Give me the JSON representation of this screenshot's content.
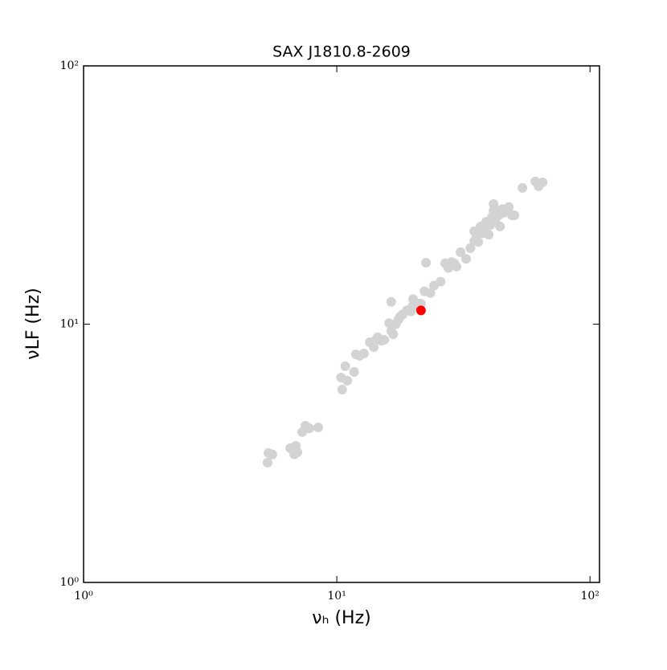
{
  "chart_data": {
    "type": "scatter",
    "title": "SAX J1810.8-2609",
    "xlabel": "νₕ (Hz)",
    "ylabel": "νLF (Hz)",
    "xscale": "log",
    "yscale": "log",
    "xlim": [
      1,
      109
    ],
    "ylim": [
      1,
      100
    ],
    "xticks": [
      {
        "value": 1,
        "label": "10⁰"
      },
      {
        "value": 10,
        "label": "10¹"
      },
      {
        "value": 100,
        "label": "10²"
      }
    ],
    "yticks": [
      {
        "value": 1,
        "label": "10⁰"
      },
      {
        "value": 10,
        "label": "10¹"
      },
      {
        "value": 100,
        "label": "10²"
      }
    ],
    "series": [
      {
        "color": "#d3d3d3",
        "x": [
          5.33,
          5.37,
          5.57,
          6.55,
          6.79,
          6.89,
          6.99,
          7.3,
          7.52,
          7.8,
          8.45,
          10.4,
          10.5,
          10.8,
          11.0,
          11.7,
          11.9,
          12.3,
          12.8,
          13.5,
          14.0,
          14.3,
          14.5,
          15.0,
          15.4,
          16.1,
          16.4,
          16.7,
          17.1,
          17.5,
          17.8,
          18.2,
          18.9,
          19.6,
          19.9,
          20.0,
          20.9,
          21.5,
          22.2,
          22.5,
          23.4,
          24.2,
          25.7,
          26.8,
          27.6,
          28.4,
          29.1,
          29.7,
          30.8,
          32.4,
          33.7,
          34.9,
          35.7,
          34.9,
          36.2,
          37.6,
          38.4,
          38.9,
          37.0,
          39.8,
          40.4,
          41.0,
          41.6,
          42.2,
          42.8,
          43.5,
          44.1,
          45.1,
          41.6,
          45.7,
          47.5,
          49.2,
          50.3,
          47.8,
          54.1,
          60.8,
          62.7,
          65.0,
          16.4,
          20.3
        ],
        "values": [
          2.91,
          3.17,
          3.13,
          3.31,
          3.13,
          3.38,
          3.19,
          3.82,
          4.04,
          3.95,
          3.98,
          6.21,
          5.58,
          6.87,
          6.04,
          6.53,
          7.64,
          7.54,
          7.7,
          8.51,
          8.15,
          8.7,
          8.89,
          8.63,
          8.7,
          10.1,
          9.41,
          9.14,
          10.0,
          10.4,
          10.7,
          10.9,
          11.3,
          11.2,
          11.7,
          12.5,
          12.0,
          12.0,
          13.4,
          17.3,
          13.2,
          14.1,
          14.6,
          17.2,
          16.5,
          17.4,
          17.2,
          16.7,
          19.0,
          17.9,
          19.7,
          21.0,
          21.8,
          22.9,
          20.8,
          22.5,
          23.5,
          24.9,
          23.9,
          22.2,
          24.2,
          26.0,
          27.5,
          25.3,
          27.5,
          26.4,
          23.9,
          27.9,
          29.2,
          27.0,
          27.9,
          26.4,
          26.4,
          28.4,
          33.7,
          35.7,
          34.2,
          35.4,
          12.2,
          11.8
        ]
      },
      {
        "color": "#ff0000",
        "x": [
          21.5
        ],
        "values": [
          11.3
        ]
      }
    ]
  }
}
